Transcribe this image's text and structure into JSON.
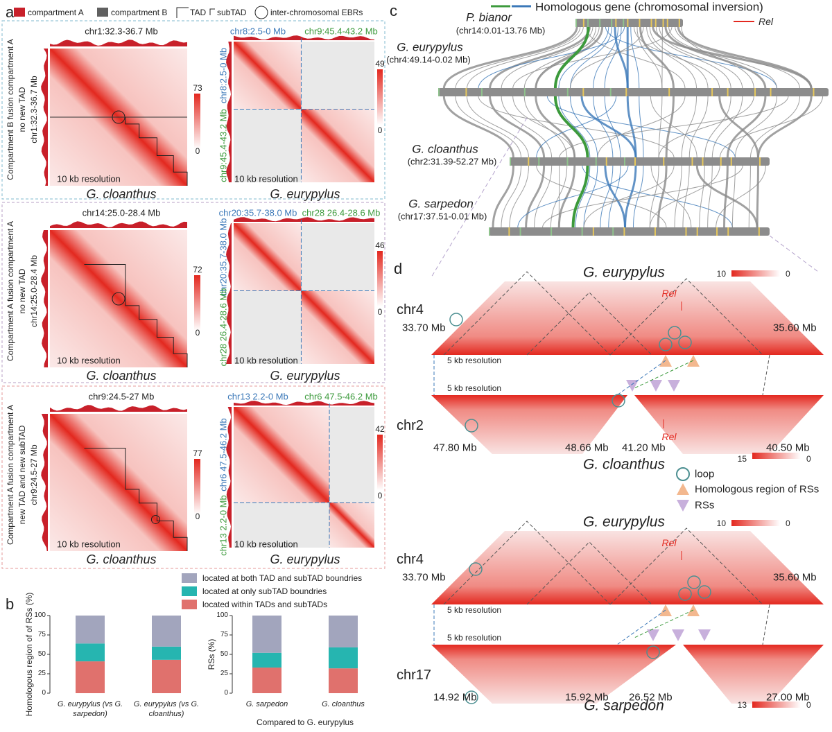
{
  "panel_labels": [
    "a",
    "b",
    "c",
    "d"
  ],
  "legend_a": [
    "compartment A",
    "compartment B",
    "TAD",
    "subTAD",
    "inter-chromosomal EBRs"
  ],
  "panel_a": [
    {
      "side_label": [
        "Compartment B fusion compartment A",
        "no new TAD",
        "chr1:32.3-36.7 Mb"
      ],
      "left": {
        "title": "chr1:32.3-36.7 Mb",
        "colorbar": [
          73,
          0
        ],
        "resolution": "10 kb resolution",
        "species": "G. cloanthus"
      },
      "right": {
        "x_labels": [
          "chr8:2.5-0 Mb",
          "chr9:45.4-43.2 Mb"
        ],
        "y_labels": [
          "chr8:2.5-0 Mb",
          "chr9:45.4-43.2 Mb"
        ],
        "colorbar": [
          49,
          0
        ],
        "resolution": "10 kb resolution",
        "species": "G. eurypylus"
      }
    },
    {
      "side_label": [
        "Compartment A fusion compartment A",
        "no new TAD",
        "chr14:25.0-28.4 Mb"
      ],
      "left": {
        "title": "chr14:25.0-28.4 Mb",
        "colorbar": [
          72,
          0
        ],
        "resolution": "10 kb resolution",
        "species": "G. cloanthus"
      },
      "right": {
        "x_labels": [
          "chr20:35.7-38.0 Mb",
          "chr28 26.4-28.6 Mb"
        ],
        "y_labels": [
          "chr20:35.7-38.0 Mb",
          "chr28 26.4-28.6 Mb"
        ],
        "colorbar": [
          46,
          0
        ],
        "resolution": "10 kb resolution",
        "species": "G. eurypylus"
      }
    },
    {
      "side_label": [
        "Compartment A fusion compartment A",
        "new TAD and new subTAD",
        "chr9:24.5-27 Mb"
      ],
      "left": {
        "title": "chr9:24.5-27 Mb",
        "colorbar": [
          77,
          0
        ],
        "resolution": "10 kb resolution",
        "species": "G. cloanthus"
      },
      "right": {
        "x_labels": [
          "chr13 2.2-0 Mb",
          "chr6 47.5-46.2 Mb"
        ],
        "y_labels": [
          "chr6 47.5-46.2 Mb",
          "chr13 2.2-0 Mb"
        ],
        "colorbar": [
          42,
          0
        ],
        "resolution": "10 kb resolution",
        "species": "G. eurypylus"
      }
    }
  ],
  "panel_c": {
    "legend": "Homologous gene (chromosomal inversion)",
    "rel": "Rel",
    "species": [
      {
        "name": "P. bianor",
        "region": "(chr14:0.01-13.76 Mb)"
      },
      {
        "name": "G. eurypylus",
        "region": "(chr4:49.14-0.02 Mb)"
      },
      {
        "name": "G. cloanthus",
        "region": "(chr2:31.39-52.27 Mb)"
      },
      {
        "name": "G. sarpedon",
        "region": "(chr17:37.51-0.01 Mb)"
      }
    ]
  },
  "panel_d": {
    "pairs": [
      {
        "top_species": "G. eurypylus",
        "top_chr": "chr4",
        "top_left": "33.70 Mb",
        "top_right": "35.60 Mb",
        "top_rel": "Rel",
        "top_colorbar": [
          10,
          0
        ],
        "resolution_top": "5 kb resolution",
        "resolution_bottom": "5 kb resolution",
        "bottom_chr": "chr2",
        "bottom_labels": [
          "47.80 Mb",
          "48.66 Mb",
          "41.20 Mb",
          "40.50 Mb"
        ],
        "bottom_rel": "Rel",
        "bottom_species": "G. cloanthus",
        "bottom_colorbar": [
          15,
          0
        ]
      },
      {
        "top_species": "G. eurypylus",
        "top_chr": "chr4",
        "top_left": "33.70 Mb",
        "top_right": "35.60 Mb",
        "top_rel": "Rel",
        "top_colorbar": [
          10,
          0
        ],
        "resolution_top": "5 kb resolution",
        "resolution_bottom": "5 kb resolution",
        "bottom_chr": "chr17",
        "bottom_labels": [
          "14.92 Mb",
          "15.92 Mb",
          "26.52 Mb",
          "27.00 Mb"
        ],
        "bottom_species": "G. sarpedon",
        "bottom_colorbar": [
          13,
          0
        ]
      }
    ],
    "legend": [
      "loop",
      "Homologous region of RSs",
      "RSs"
    ]
  },
  "chart_data": [
    {
      "type": "bar",
      "stacked": true,
      "ylabel": "Homologous region of of RSs (%)",
      "categories": [
        "G. eurypylus (vs G. sarpedon)",
        "G. eurypylus (vs G. cloanthus)"
      ],
      "series": [
        {
          "name": "located within TADs and subTADs",
          "color": "#e0716d",
          "values": [
            41,
            43
          ]
        },
        {
          "name": "located at only subTAD boundries",
          "color": "#26b5b0",
          "values": [
            23,
            17
          ]
        },
        {
          "name": "located at both TAD and subTAD boundries",
          "color": "#a2a5bd",
          "values": [
            36,
            40
          ]
        }
      ],
      "ylim": [
        0,
        100
      ],
      "yticks": [
        0,
        25,
        50,
        75,
        100
      ]
    },
    {
      "type": "bar",
      "stacked": true,
      "ylabel": "RSs (%)",
      "xlabel": "Compared to G. eurypylus",
      "categories": [
        "G. sarpedon",
        "G. cloanthus"
      ],
      "series": [
        {
          "color": "#e0716d",
          "values": [
            33,
            32
          ]
        },
        {
          "color": "#26b5b0",
          "values": [
            19,
            27
          ]
        },
        {
          "color": "#a2a5bd",
          "values": [
            48,
            41
          ]
        }
      ],
      "ylim": [
        0,
        100
      ],
      "yticks": [
        0,
        25,
        50,
        75,
        100
      ]
    }
  ]
}
